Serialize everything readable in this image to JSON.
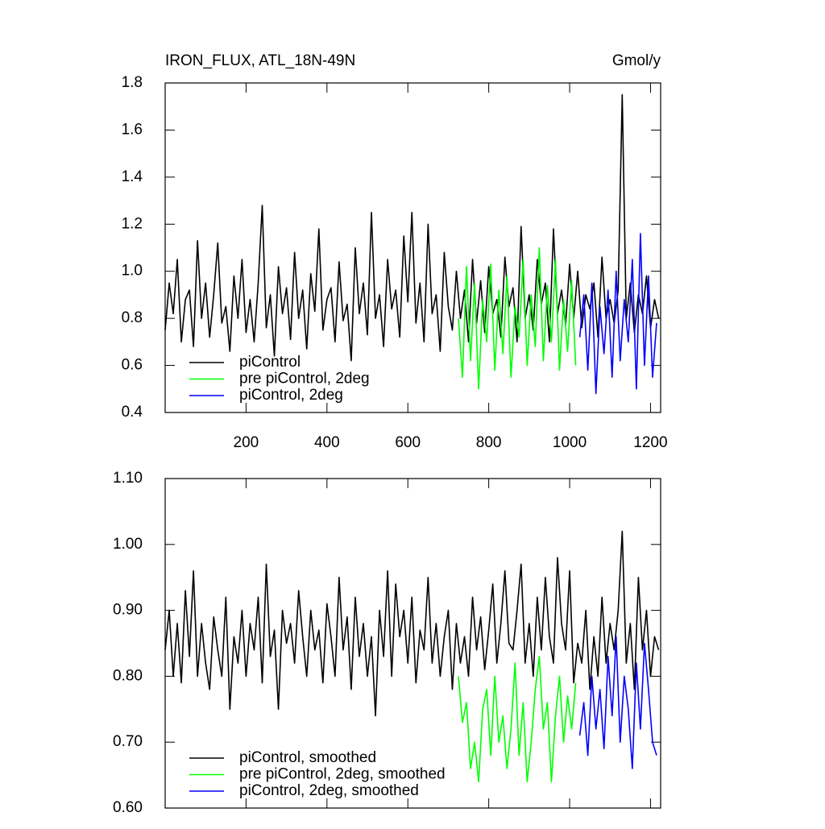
{
  "chart_data": [
    {
      "type": "line",
      "title": "IRON_FLUX, ATL_18N-49N",
      "units": "Gmol/y",
      "xlim": [
        0,
        1225
      ],
      "ylim": [
        0.4,
        1.8
      ],
      "xticks": [
        200,
        400,
        600,
        800,
        1000,
        1200
      ],
      "yticks": [
        {
          "value": 0.4,
          "label": "0.4"
        },
        {
          "value": 0.6,
          "label": "0.6"
        },
        {
          "value": 0.8,
          "label": "0.8"
        },
        {
          "value": 1.0,
          "label": "1.0"
        },
        {
          "value": 1.2,
          "label": "1.2"
        },
        {
          "value": 1.4,
          "label": "1.4"
        },
        {
          "value": 1.6,
          "label": "1.6"
        },
        {
          "value": 1.8,
          "label": "1.8"
        }
      ],
      "legend": "lower left",
      "series": [
        {
          "name": "piControl",
          "color": "#000000",
          "x": [
            0,
            10,
            20,
            30,
            40,
            50,
            60,
            70,
            80,
            90,
            100,
            110,
            120,
            130,
            140,
            150,
            160,
            170,
            180,
            190,
            200,
            210,
            220,
            230,
            240,
            250,
            260,
            270,
            280,
            290,
            300,
            310,
            320,
            330,
            340,
            350,
            360,
            370,
            380,
            390,
            400,
            410,
            420,
            430,
            440,
            450,
            460,
            470,
            480,
            490,
            500,
            510,
            520,
            530,
            540,
            550,
            560,
            570,
            580,
            590,
            600,
            610,
            620,
            630,
            640,
            650,
            660,
            670,
            680,
            690,
            700,
            710,
            720,
            730,
            740,
            750,
            760,
            770,
            780,
            790,
            800,
            810,
            820,
            830,
            840,
            850,
            860,
            870,
            880,
            890,
            900,
            910,
            920,
            930,
            940,
            950,
            960,
            970,
            980,
            990,
            1000,
            1010,
            1020,
            1030,
            1040,
            1050,
            1060,
            1070,
            1080,
            1090,
            1100,
            1110,
            1120,
            1130,
            1140,
            1150,
            1160,
            1170,
            1180,
            1190,
            1200,
            1210,
            1220
          ],
          "values": [
            0.75,
            0.95,
            0.82,
            1.05,
            0.7,
            0.88,
            0.92,
            0.68,
            1.13,
            0.8,
            0.95,
            0.72,
            0.9,
            1.12,
            0.78,
            0.85,
            0.66,
            0.98,
            0.8,
            1.05,
            0.74,
            0.88,
            0.7,
            0.95,
            1.28,
            0.76,
            0.9,
            0.64,
            1.02,
            0.82,
            0.93,
            0.71,
            1.08,
            0.8,
            0.92,
            0.67,
            0.99,
            0.83,
            1.18,
            0.75,
            0.88,
            0.93,
            0.7,
            1.04,
            0.79,
            0.86,
            0.62,
            1.1,
            0.82,
            0.95,
            0.73,
            1.25,
            0.8,
            0.9,
            0.68,
            1.05,
            0.84,
            0.92,
            0.72,
            1.15,
            0.87,
            1.25,
            0.78,
            0.95,
            0.7,
            1.2,
            0.82,
            0.9,
            0.66,
            1.08,
            0.85,
            0.75,
            1.0,
            0.8,
            0.92,
            0.7,
            1.05,
            0.78,
            0.96,
            0.74,
            1.02,
            0.82,
            0.88,
            0.72,
            1.06,
            0.85,
            0.93,
            0.7,
            1.19,
            0.8,
            0.9,
            0.75,
            1.05,
            0.86,
            0.95,
            0.7,
            1.18,
            0.82,
            0.92,
            0.77,
            1.03,
            0.8,
            1.0,
            0.76,
            0.9,
            0.84,
            0.95,
            0.72,
            1.06,
            0.8,
            0.88,
            0.78,
            0.92,
            1.75,
            0.8,
            0.95,
            0.74,
            0.9,
            0.82,
            0.98,
            0.76,
            0.88,
            0.8
          ]
        },
        {
          "name": "pre piControl, 2deg",
          "color": "#00ff00",
          "x": [
            725,
            735,
            745,
            755,
            765,
            775,
            785,
            795,
            805,
            815,
            825,
            835,
            845,
            855,
            865,
            875,
            885,
            895,
            905,
            915,
            925,
            935,
            945,
            955,
            965,
            975,
            985,
            995,
            1005,
            1015
          ],
          "values": [
            0.8,
            0.55,
            1.02,
            0.62,
            0.95,
            0.5,
            0.88,
            0.7,
            1.03,
            0.58,
            0.92,
            0.65,
            0.98,
            0.55,
            0.85,
            0.72,
            1.05,
            0.6,
            0.9,
            0.68,
            1.1,
            0.62,
            0.94,
            0.7,
            1.05,
            0.58,
            0.88,
            0.66,
            0.96,
            0.6
          ]
        },
        {
          "name": "piControl, 2deg",
          "color": "#0000ff",
          "x": [
            1025,
            1035,
            1045,
            1055,
            1065,
            1075,
            1085,
            1095,
            1105,
            1115,
            1125,
            1135,
            1145,
            1155,
            1165,
            1175,
            1185,
            1195,
            1205,
            1215
          ],
          "values": [
            0.72,
            0.9,
            0.58,
            0.95,
            0.48,
            0.85,
            0.65,
            0.92,
            0.55,
            1.0,
            0.62,
            0.88,
            0.7,
            1.05,
            0.5,
            1.16,
            0.6,
            0.98,
            0.55,
            0.78
          ]
        }
      ]
    },
    {
      "type": "line",
      "xlim": [
        0,
        1225
      ],
      "ylim": [
        0.6,
        1.1
      ],
      "xticks": [
        200,
        400,
        600,
        800,
        1000,
        1200
      ],
      "yticks": [
        {
          "value": 0.6,
          "label": "0.60"
        },
        {
          "value": 0.7,
          "label": "0.70"
        },
        {
          "value": 0.8,
          "label": "0.80"
        },
        {
          "value": 0.9,
          "label": "0.90"
        },
        {
          "value": 1.0,
          "label": "1.00"
        },
        {
          "value": 1.1,
          "label": "1.10"
        }
      ],
      "legend": "lower left",
      "series": [
        {
          "name": "piControl, smoothed",
          "color": "#000000",
          "x": [
            0,
            10,
            20,
            30,
            40,
            50,
            60,
            70,
            80,
            90,
            100,
            110,
            120,
            130,
            140,
            150,
            160,
            170,
            180,
            190,
            200,
            210,
            220,
            230,
            240,
            250,
            260,
            270,
            280,
            290,
            300,
            310,
            320,
            330,
            340,
            350,
            360,
            370,
            380,
            390,
            400,
            410,
            420,
            430,
            440,
            450,
            460,
            470,
            480,
            490,
            500,
            510,
            520,
            530,
            540,
            550,
            560,
            570,
            580,
            590,
            600,
            610,
            620,
            630,
            640,
            650,
            660,
            670,
            680,
            690,
            700,
            710,
            720,
            730,
            740,
            750,
            760,
            770,
            780,
            790,
            800,
            810,
            820,
            830,
            840,
            850,
            860,
            870,
            880,
            890,
            900,
            910,
            920,
            930,
            940,
            950,
            960,
            970,
            980,
            990,
            1000,
            1010,
            1020,
            1030,
            1040,
            1050,
            1060,
            1070,
            1080,
            1090,
            1100,
            1110,
            1120,
            1130,
            1140,
            1150,
            1160,
            1170,
            1180,
            1190,
            1200,
            1210,
            1220
          ],
          "values": [
            0.84,
            0.9,
            0.8,
            0.88,
            0.79,
            0.93,
            0.83,
            0.96,
            0.8,
            0.88,
            0.82,
            0.78,
            0.89,
            0.84,
            0.8,
            0.92,
            0.75,
            0.86,
            0.82,
            0.9,
            0.8,
            0.88,
            0.84,
            0.92,
            0.79,
            0.97,
            0.83,
            0.87,
            0.75,
            0.9,
            0.85,
            0.88,
            0.82,
            0.93,
            0.86,
            0.8,
            0.9,
            0.84,
            0.87,
            0.79,
            0.91,
            0.86,
            0.8,
            0.95,
            0.84,
            0.89,
            0.78,
            0.92,
            0.83,
            0.88,
            0.8,
            0.86,
            0.74,
            0.9,
            0.83,
            0.96,
            0.8,
            0.94,
            0.86,
            0.9,
            0.82,
            0.92,
            0.79,
            0.87,
            0.84,
            0.95,
            0.82,
            0.88,
            0.8,
            0.86,
            0.9,
            0.78,
            0.88,
            0.82,
            0.86,
            0.8,
            0.92,
            0.84,
            0.89,
            0.81,
            0.87,
            0.94,
            0.82,
            0.88,
            0.96,
            0.85,
            0.84,
            0.9,
            0.97,
            0.82,
            0.88,
            0.8,
            0.92,
            0.84,
            0.95,
            0.86,
            0.82,
            0.98,
            0.88,
            0.84,
            0.96,
            0.79,
            0.85,
            0.82,
            0.9,
            0.78,
            0.86,
            0.8,
            0.92,
            0.82,
            0.88,
            0.84,
            0.9,
            1.02,
            0.82,
            0.88,
            0.78,
            0.95,
            0.84,
            0.9,
            0.8,
            0.86,
            0.84
          ]
        },
        {
          "name": "pre piControl, 2deg, smoothed",
          "color": "#00ff00",
          "x": [
            725,
            735,
            745,
            755,
            765,
            775,
            785,
            795,
            805,
            815,
            825,
            835,
            845,
            855,
            865,
            875,
            885,
            895,
            905,
            915,
            925,
            935,
            945,
            955,
            965,
            975,
            985,
            995,
            1005,
            1015
          ],
          "values": [
            0.8,
            0.73,
            0.76,
            0.66,
            0.7,
            0.64,
            0.75,
            0.78,
            0.68,
            0.8,
            0.7,
            0.74,
            0.66,
            0.72,
            0.82,
            0.68,
            0.76,
            0.64,
            0.7,
            0.78,
            0.83,
            0.72,
            0.76,
            0.64,
            0.74,
            0.8,
            0.7,
            0.77,
            0.72,
            0.79
          ]
        },
        {
          "name": "piControl, 2deg, smoothed",
          "color": "#0000ff",
          "x": [
            1025,
            1035,
            1045,
            1055,
            1065,
            1075,
            1085,
            1095,
            1105,
            1115,
            1125,
            1135,
            1145,
            1155,
            1165,
            1175,
            1185,
            1195,
            1205,
            1215
          ],
          "values": [
            0.71,
            0.76,
            0.68,
            0.8,
            0.72,
            0.78,
            0.69,
            0.83,
            0.74,
            0.86,
            0.7,
            0.8,
            0.75,
            0.66,
            0.82,
            0.72,
            0.85,
            0.78,
            0.7,
            0.68
          ]
        }
      ]
    }
  ]
}
